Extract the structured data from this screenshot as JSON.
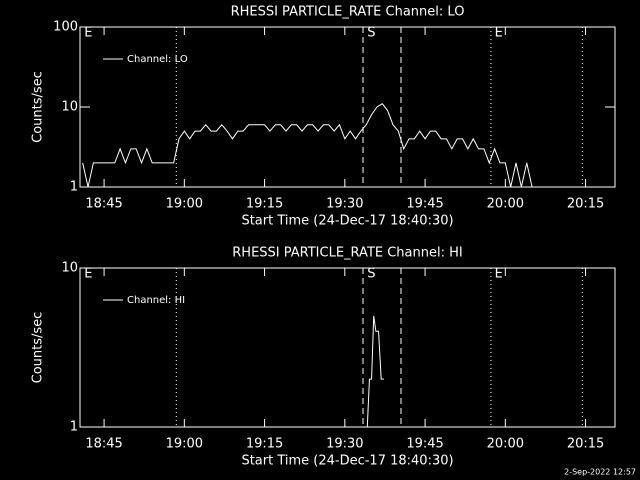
{
  "chart_data": [
    {
      "type": "line",
      "title": "RHESSI PARTICLE_RATE Channel: LO",
      "xlabel": "Start Time (24-Dec-17 18:40:30)",
      "ylabel": "Counts/sec",
      "log_y": true,
      "ylim": [
        1,
        100
      ],
      "yticks": [
        1,
        10,
        100
      ],
      "xlim": [
        1120.5,
        1220.5
      ],
      "xticks": [
        {
          "value": 1125,
          "label": "18:45"
        },
        {
          "value": 1140,
          "label": "19:00"
        },
        {
          "value": 1155,
          "label": "19:15"
        },
        {
          "value": 1170,
          "label": "19:30"
        },
        {
          "value": 1185,
          "label": "19:45"
        },
        {
          "value": 1200,
          "label": "20:00"
        },
        {
          "value": 1215,
          "label": "20:15"
        }
      ],
      "legend": "upper left",
      "series": [
        {
          "name": "Channel: LO",
          "color": "#ffffff",
          "x": [
            1121,
            1122,
            1123,
            1124,
            1125,
            1126,
            1127,
            1128,
            1129,
            1130,
            1131,
            1132,
            1133,
            1134,
            1135,
            1136,
            1137,
            1138,
            1139,
            1140,
            1141,
            1142,
            1143,
            1144,
            1145,
            1146,
            1147,
            1148,
            1149,
            1150,
            1151,
            1152,
            1153,
            1154,
            1155,
            1156,
            1157,
            1158,
            1159,
            1160,
            1161,
            1162,
            1163,
            1164,
            1165,
            1166,
            1167,
            1168,
            1169,
            1170,
            1171,
            1172,
            1173,
            1174,
            1175,
            1176,
            1177,
            1178,
            1179,
            1180,
            1181,
            1182,
            1183,
            1184,
            1185,
            1186,
            1187,
            1188,
            1189,
            1190,
            1191,
            1192,
            1193,
            1194,
            1195,
            1196,
            1197,
            1198,
            1199,
            1200,
            1201,
            1202,
            1203,
            1204,
            1205,
            1206,
            1207,
            1208,
            1209,
            1210,
            1211
          ],
          "values": [
            2,
            1,
            2,
            2,
            2,
            2,
            2,
            3,
            2,
            3,
            3,
            2,
            3,
            2,
            2,
            2,
            2,
            2,
            4,
            5,
            4,
            5,
            5,
            6,
            5,
            5,
            6,
            5,
            4,
            5,
            5,
            6,
            6,
            6,
            6,
            5,
            6,
            6,
            5,
            6,
            6,
            5,
            6,
            6,
            5,
            6,
            6,
            5,
            6,
            4,
            5,
            4,
            5,
            6,
            8,
            10,
            11,
            9,
            6,
            5,
            3,
            4,
            4,
            5,
            4,
            5,
            5,
            4,
            4,
            3,
            4,
            4,
            3,
            4,
            3,
            3,
            2,
            3,
            2,
            2,
            1,
            2,
            1,
            2,
            1,
            null,
            1,
            null,
            null,
            1,
            null
          ]
        }
      ],
      "vlines": [
        {
          "x": 1138.5,
          "style": "dotted"
        },
        {
          "x": 1173.4,
          "style": "dashed"
        },
        {
          "x": 1180.5,
          "style": "dashed"
        },
        {
          "x": 1197.3,
          "style": "dotted"
        },
        {
          "x": 1214.4,
          "style": "dotted"
        }
      ],
      "annotations": [
        {
          "x": 1121.3,
          "text": "E"
        },
        {
          "x": 1174.2,
          "text": "S"
        },
        {
          "x": 1198,
          "text": "E"
        }
      ]
    },
    {
      "type": "line",
      "title": "RHESSI PARTICLE_RATE Channel: HI",
      "xlabel": "Start Time (24-Dec-17 18:40:30)",
      "ylabel": "Counts/sec",
      "log_y": true,
      "ylim": [
        1,
        10
      ],
      "yticks": [
        1,
        10
      ],
      "xlim": [
        1120.5,
        1220.5
      ],
      "xticks": [
        {
          "value": 1125,
          "label": "18:45"
        },
        {
          "value": 1140,
          "label": "19:00"
        },
        {
          "value": 1155,
          "label": "19:15"
        },
        {
          "value": 1170,
          "label": "19:30"
        },
        {
          "value": 1185,
          "label": "19:45"
        },
        {
          "value": 1200,
          "label": "20:00"
        },
        {
          "value": 1215,
          "label": "20:15"
        }
      ],
      "legend": "upper left",
      "series": [
        {
          "name": "Channel: HI",
          "color": "#ffffff",
          "x": [
            1174.2,
            1174.6,
            1175,
            1175.4,
            1175.8,
            1176.3,
            1176.8,
            1177.3
          ],
          "values": [
            1,
            2,
            2,
            5,
            4,
            4,
            2,
            2
          ]
        }
      ],
      "vlines": [
        {
          "x": 1138.5,
          "style": "dotted"
        },
        {
          "x": 1173.4,
          "style": "dashed"
        },
        {
          "x": 1180.5,
          "style": "dashed"
        },
        {
          "x": 1197.3,
          "style": "dotted"
        },
        {
          "x": 1214.4,
          "style": "dotted"
        }
      ],
      "annotations": [
        {
          "x": 1121.3,
          "text": "E"
        },
        {
          "x": 1174.2,
          "text": "S"
        },
        {
          "x": 1198,
          "text": "E"
        }
      ]
    }
  ],
  "footer": "2-Sep-2022 12:57"
}
